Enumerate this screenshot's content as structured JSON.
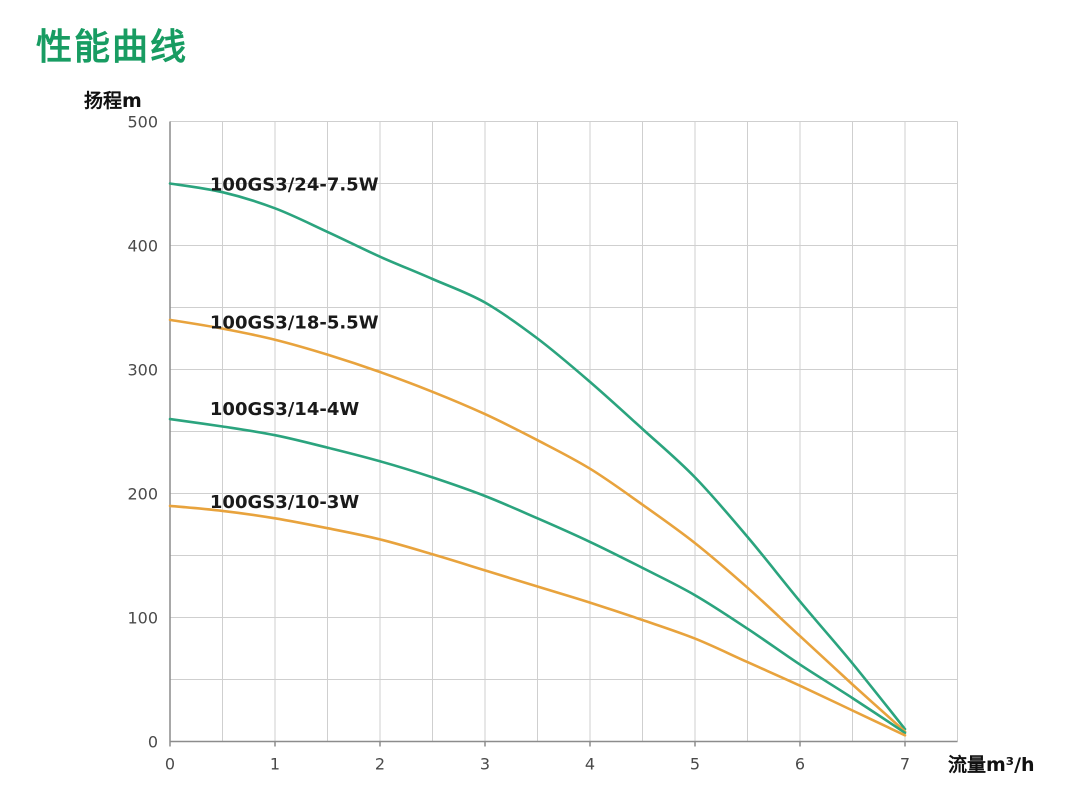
{
  "page": {
    "title": "性能曲线"
  },
  "colors": {
    "title_green": "#189C62",
    "curve_green": "#2BA47E",
    "curve_orange": "#E8A33D",
    "grid": "#CFCFCF",
    "axis": "#8C8C8C",
    "tick_text": "#4A4A4A",
    "curve_label_text": "#1A1A1A"
  },
  "chart_data": {
    "type": "line",
    "title": "性能曲线",
    "xlabel": "流量m³/h",
    "ylabel": "扬程m",
    "xlim": [
      0,
      7.5
    ],
    "ylim": [
      0,
      500
    ],
    "grid": {
      "x_step": 0.5,
      "y_step": 50,
      "on": true
    },
    "x_tick_values": [
      0,
      1,
      2,
      3,
      4,
      5,
      6,
      7
    ],
    "y_tick_values": [
      0,
      100,
      200,
      300,
      400,
      500
    ],
    "x": [
      0,
      0.5,
      1,
      1.5,
      2,
      2.5,
      3,
      3.5,
      4,
      4.5,
      5,
      5.5,
      6,
      6.5,
      7
    ],
    "series": [
      {
        "name": "100GS3/24-7.5W",
        "color": "#2BA47E",
        "values": [
          450,
          443,
          430,
          411,
          391,
          373,
          354,
          325,
          290,
          252,
          213,
          165,
          113,
          63,
          10
        ],
        "label_pos": {
          "x": 0.38,
          "y": 449
        }
      },
      {
        "name": "100GS3/18-5.5W",
        "color": "#E8A33D",
        "values": [
          340,
          333,
          324,
          312,
          298,
          282,
          264,
          243,
          220,
          191,
          160,
          124,
          85,
          46,
          8
        ],
        "label_pos": {
          "x": 0.38,
          "y": 338
        }
      },
      {
        "name": "100GS3/14-4W",
        "color": "#2BA47E",
        "values": [
          260,
          254,
          247,
          237,
          226,
          213,
          198,
          180,
          161,
          140,
          118,
          91,
          62,
          35,
          7
        ],
        "label_pos": {
          "x": 0.38,
          "y": 268
        }
      },
      {
        "name": "100GS3/10-3W",
        "color": "#E8A33D",
        "values": [
          190,
          186,
          180,
          172,
          163,
          151,
          138,
          125,
          112,
          98,
          83,
          64,
          45,
          25,
          5
        ],
        "label_pos": {
          "x": 0.38,
          "y": 193
        }
      }
    ],
    "legend": "inline-labels"
  }
}
